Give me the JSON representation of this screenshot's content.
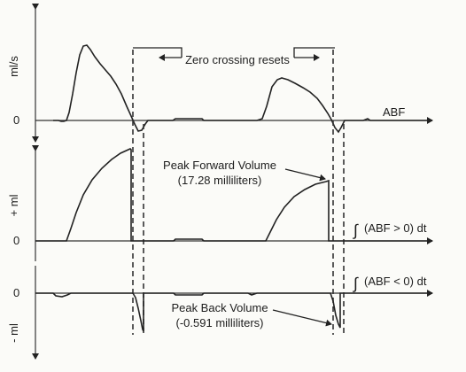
{
  "figure": {
    "panels": {
      "flow": {
        "y_unit": "ml/s",
        "zero_label": "0",
        "signal_label": "ABF"
      },
      "forward": {
        "y_unit": "+ ml",
        "zero_label": "0",
        "integral_label": "(ABF > 0) dt",
        "integral_symbol": "∫",
        "annotation_line1": "Peak Forward Volume",
        "annotation_line2": "(17.28 milliliters)"
      },
      "backward": {
        "y_unit": "- ml",
        "zero_label": "0",
        "integral_label": "(ABF < 0) dt",
        "integral_symbol": "∫",
        "annotation_line1": "Peak Back Volume",
        "annotation_line2": "(-0.591 milliliters)"
      }
    },
    "zero_crossing_label": "Zero crossing resets"
  }
}
